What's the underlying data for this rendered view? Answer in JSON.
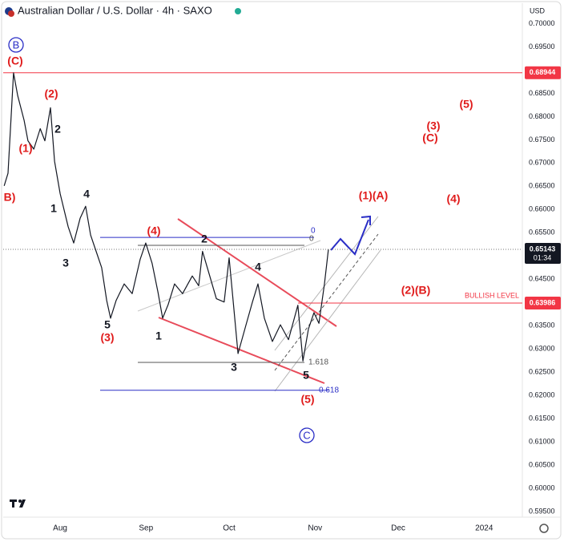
{
  "chart_data": {
    "type": "line",
    "title": "Australian Dollar / U.S. Dollar · 4h · SAXO",
    "y_axis_label": "USD",
    "xlim": [
      -21.7,
      166.8
    ],
    "xticks": [
      {
        "value": 0,
        "label": "Aug"
      },
      {
        "value": 31,
        "label": "Sep"
      },
      {
        "value": 61,
        "label": "Oct"
      },
      {
        "value": 92,
        "label": "Nov"
      },
      {
        "value": 122,
        "label": "Dec"
      },
      {
        "value": 153,
        "label": "2024"
      }
    ],
    "ylim": [
      0.5938,
      0.7044
    ],
    "yticks": [
      {
        "value": 0.7,
        "label": "0.70000"
      },
      {
        "value": 0.695,
        "label": "0.69500"
      },
      {
        "value": 0.69,
        "label": "0.69000"
      },
      {
        "value": 0.685,
        "label": "0.68500"
      },
      {
        "value": 0.68,
        "label": "0.68000"
      },
      {
        "value": 0.675,
        "label": "0.67500"
      },
      {
        "value": 0.67,
        "label": "0.67000"
      },
      {
        "value": 0.665,
        "label": "0.66500"
      },
      {
        "value": 0.66,
        "label": "0.66000"
      },
      {
        "value": 0.655,
        "label": "0.65500"
      },
      {
        "value": 0.65,
        "label": "0.65000"
      },
      {
        "value": 0.645,
        "label": "0.64500"
      },
      {
        "value": 0.64,
        "label": "0.64000"
      },
      {
        "value": 0.635,
        "label": "0.63500"
      },
      {
        "value": 0.63,
        "label": "0.63000"
      },
      {
        "value": 0.625,
        "label": "0.62500"
      },
      {
        "value": 0.62,
        "label": "0.62000"
      },
      {
        "value": 0.615,
        "label": "0.61500"
      },
      {
        "value": 0.61,
        "label": "0.61000"
      },
      {
        "value": 0.605,
        "label": "0.60500"
      },
      {
        "value": 0.6,
        "label": "0.60000"
      },
      {
        "value": 0.595,
        "label": "0.59500"
      }
    ],
    "grid": false,
    "series": [
      {
        "color": "#131722",
        "x": [
          -20.2,
          -18.8,
          -16.8,
          -15.3,
          -13.0,
          -11.6,
          -9.5,
          -7.2,
          -5.5,
          -3.5,
          -2.0,
          0,
          2.9,
          4.9,
          7.2,
          9.2,
          11.0,
          13.0,
          15.0,
          16.8,
          18.2,
          20.2,
          23.1,
          26.0,
          28.9,
          30.9,
          33.2,
          35.3,
          37.0,
          39.0,
          41.3,
          44.2,
          47.7,
          50.0,
          51.4,
          54.0,
          56.4,
          59.2,
          61.0,
          62.7,
          64.2,
          67.1,
          69.4,
          71.4,
          73.7,
          76.6,
          79.5,
          82.4,
          85.8,
          87.6,
          89.6,
          91.6,
          93.4,
          95.4,
          96.8
        ],
        "values": [
          0.6651,
          0.6678,
          0.6894,
          0.6845,
          0.6792,
          0.6748,
          0.673,
          0.6774,
          0.6748,
          0.6819,
          0.6704,
          0.6634,
          0.6563,
          0.6528,
          0.6581,
          0.6607,
          0.6545,
          0.651,
          0.6475,
          0.6404,
          0.6366,
          0.6404,
          0.644,
          0.6419,
          0.6493,
          0.6528,
          0.6484,
          0.6422,
          0.6366,
          0.6396,
          0.644,
          0.6419,
          0.6457,
          0.6436,
          0.651,
          0.6457,
          0.6408,
          0.6401,
          0.6496,
          0.6387,
          0.629,
          0.6352,
          0.6401,
          0.644,
          0.6366,
          0.6316,
          0.6352,
          0.632,
          0.6394,
          0.6274,
          0.6343,
          0.6378,
          0.6355,
          0.644,
          0.6514
        ]
      }
    ],
    "price_lines": [
      {
        "value": 0.68944,
        "color": "#f23645"
      },
      {
        "value": 0.63986,
        "color": "#f23645",
        "label": "BULLISH LEVEL"
      }
    ],
    "last_price": 0.65143,
    "countdown": "01:34",
    "fib_levels": [
      {
        "label": "0",
        "value": 0.654,
        "color": "#2a2ec6"
      },
      {
        "label": "0.618",
        "value": 0.6211,
        "color": "#2a2ec6"
      },
      {
        "label": "0",
        "value": 0.6523,
        "color": "#555555"
      },
      {
        "label": "1.618",
        "value": 0.6271,
        "color": "#555555"
      }
    ],
    "major_labels": {
      "color": "#2a2ec6",
      "texts": [
        "B",
        "C"
      ]
    },
    "intermediate_labels": {
      "color": "#e01b1b",
      "texts": [
        "(C)",
        "B)",
        "(2)",
        "(1)",
        "(3)",
        "(4)",
        "(5)",
        "(1)(A)",
        "(2)(B)",
        "(5)",
        "(3)",
        "(C)",
        "(4)"
      ]
    },
    "minor_labels": {
      "color": "#131722",
      "texts": [
        "2",
        "4",
        "1",
        "3",
        "5",
        "2",
        "1",
        "4",
        "3",
        "5"
      ]
    }
  }
}
